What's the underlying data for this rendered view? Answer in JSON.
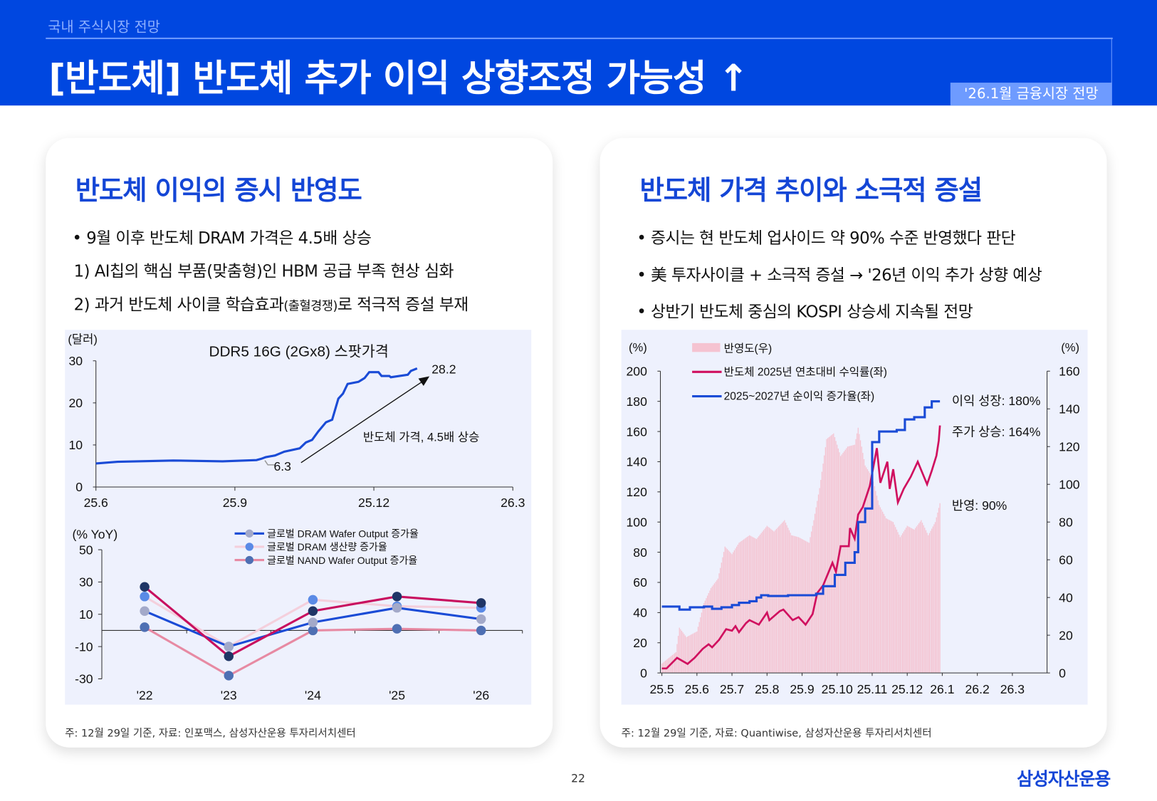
{
  "header": {
    "section": "국내 주식시장 전망",
    "title": "[반도체] 반도체 추가 이익 상향조정 가능성 ↑",
    "badge": "'26.1월 금융시장 전망"
  },
  "left_card": {
    "title": "반도체 이익의 증시 반영도",
    "bullets": [
      "• 9월 이후 반도체 DRAM 가격은 4.5배 상승",
      "1) AI칩의 핵심 부품(맞춤형)인 HBM 공급 부족 현상 심화",
      "2) 과거 반도체 사이클 학습효과",
      "(출혈경쟁)",
      "로 적극적 증설 부재"
    ],
    "footnote": "주: 12월 29일 기준,  자료: 인포맥스, 삼성자산운용 투자리서치센터"
  },
  "right_card": {
    "title": "반도체 가격 추이와 소극적 증설",
    "bullets": [
      "• 증시는 현 반도체 업사이드 약 90% 수준 반영했다 판단",
      "• 美 투자사이클 + 소극적 증설 → '26년 이익 추가 상향 예상",
      "• 상반기 반도체 중심의 KOSPI 상승세 지속될 전망"
    ],
    "footnote": "주: 12월 29일 기준,  자료: Quantiwise, 삼성자산운용 투자리서치센터"
  },
  "footer": {
    "page": "22",
    "logo": "삼성자산운용"
  },
  "colors": {
    "brand": "#0047e0",
    "title_blue": "#1446d6",
    "chart_bg": "#eef1fd",
    "pink_line": "#d0105f",
    "blue_line": "#1a4bd6",
    "bar_pink": "#f5c3d1"
  },
  "chart_data": [
    {
      "type": "line",
      "title": "DDR5 16G (2Gx8) 스팟가격",
      "ylabel": "(달러)",
      "ylim": [
        0,
        30
      ],
      "yticks": [
        "0",
        "10",
        "20",
        "30"
      ],
      "xlim": [
        "2025-06-01",
        "2026-03-01"
      ],
      "xticks": [
        {
          "label": "25.6",
          "date": "2025-06-01"
        },
        {
          "label": "25.9",
          "date": "2025-09-01"
        },
        {
          "label": "25.12",
          "date": "2025-12-01"
        },
        {
          "label": "26.3",
          "date": "2026-03-01"
        }
      ],
      "grid": false,
      "annotations": {
        "start_value": "6.3",
        "end_value": "28.2",
        "arrow_label": "반도체 가격, 4.5배 상승"
      },
      "series": [
        {
          "color": "#1a4bd6",
          "points": [
            [
              "2025-06-01",
              5.6
            ],
            [
              "2025-06-15",
              6.0
            ],
            [
              "2025-07-21",
              6.3
            ],
            [
              "2025-08-23",
              6.1
            ],
            [
              "2025-09-15",
              6.4
            ],
            [
              "2025-09-18",
              6.7
            ],
            [
              "2025-09-21",
              7.1
            ],
            [
              "2025-09-27",
              7.5
            ],
            [
              "2025-10-03",
              8.4
            ],
            [
              "2025-10-13",
              9.2
            ],
            [
              "2025-10-17",
              10.6
            ],
            [
              "2025-10-21",
              11.2
            ],
            [
              "2025-10-25",
              13.2
            ],
            [
              "2025-10-30",
              15.4
            ],
            [
              "2025-11-04",
              16
            ],
            [
              "2025-11-08",
              21
            ],
            [
              "2025-11-11",
              22.2
            ],
            [
              "2025-11-14",
              24.5
            ],
            [
              "2025-11-21",
              25
            ],
            [
              "2025-11-25",
              25.9
            ],
            [
              "2025-11-28",
              27.3
            ],
            [
              "2025-12-04",
              27.3
            ],
            [
              "2025-12-06",
              26.4
            ],
            [
              "2025-12-11",
              26.4
            ],
            [
              "2025-12-12",
              26.1
            ],
            [
              "2025-12-23",
              26.7
            ],
            [
              "2025-12-25",
              27.6
            ],
            [
              "2025-12-29",
              28.2
            ]
          ]
        }
      ]
    },
    {
      "type": "line",
      "ylabel": "(% YoY)",
      "ylim": [
        -30,
        50
      ],
      "yticks": [
        "-30",
        "-10",
        "10",
        "30",
        "50"
      ],
      "categories": [
        "'22",
        "'23",
        "'24",
        "'25",
        "'26"
      ],
      "grid": false,
      "legend": "top-center",
      "series": [
        {
          "name": "글로벌 DRAM Wafer Output 증가율",
          "color": "#1a4bd6",
          "marker": "#a3a9c9",
          "values": [
            12,
            -10,
            5,
            14,
            7
          ]
        },
        {
          "name": "글로벌 DRAM 생산량 증가율",
          "color": "#f4cfdc",
          "marker": "#5a8ae6",
          "values": [
            21,
            -10,
            19,
            15,
            14
          ]
        },
        {
          "name": "글로벌 NAND Wafer Output 증가율",
          "color": "#e78aa3",
          "marker": "#4e6fb3",
          "values": [
            2,
            -28,
            0,
            1,
            0
          ]
        },
        {
          "color": "#c8105f",
          "marker": "#1f3566",
          "values": [
            27,
            -16,
            12,
            21,
            17
          ]
        }
      ]
    },
    {
      "type": "line",
      "left_axis_label": "(%)",
      "right_axis_label": "(%)",
      "ylim_left": [
        0,
        200
      ],
      "ylim_right": [
        0,
        160
      ],
      "yticks_left": [
        "0",
        "20",
        "40",
        "60",
        "80",
        "100",
        "120",
        "140",
        "160",
        "180",
        "200"
      ],
      "yticks_right": [
        "0",
        "20",
        "40",
        "60",
        "80",
        "100",
        "120",
        "140",
        "160"
      ],
      "xticks": [
        "25.5",
        "25.6",
        "25.7",
        "25.8",
        "25.9",
        "25.10",
        "25.11",
        "25.12",
        "26.1",
        "26.2",
        "26.3"
      ],
      "xstart": "2025-05-01",
      "grid": false,
      "legend": "top-left",
      "annotations": [
        "이익 성장: 180%",
        "주가 상승: 164%",
        "반영: 90%"
      ],
      "series": [
        {
          "name": "반영도(우)",
          "kind": "bar",
          "axis": "right",
          "color": "#f5c3d1",
          "points": [
            [
              "2025-05-01",
              5
            ],
            [
              "2025-05-13",
              11
            ],
            [
              "2025-05-16",
              24
            ],
            [
              "2025-05-22",
              19
            ],
            [
              "2025-06-01",
              22
            ],
            [
              "2025-06-07",
              37
            ],
            [
              "2025-06-13",
              45
            ],
            [
              "2025-06-19",
              50
            ],
            [
              "2025-06-25",
              67
            ],
            [
              "2025-07-01",
              63
            ],
            [
              "2025-07-07",
              69
            ],
            [
              "2025-07-16",
              73
            ],
            [
              "2025-07-22",
              71
            ],
            [
              "2025-08-01",
              78
            ],
            [
              "2025-08-07",
              75
            ],
            [
              "2025-08-16",
              81
            ],
            [
              "2025-08-22",
              73
            ],
            [
              "2025-08-28",
              72
            ],
            [
              "2025-09-07",
              69
            ],
            [
              "2025-09-11",
              81
            ],
            [
              "2025-09-16",
              98
            ],
            [
              "2025-09-22",
              124
            ],
            [
              "2025-09-28",
              127
            ],
            [
              "2025-10-04",
              115
            ],
            [
              "2025-10-10",
              120
            ],
            [
              "2025-10-16",
              121
            ],
            [
              "2025-10-19",
              130
            ],
            [
              "2025-10-25",
              110
            ],
            [
              "2025-11-01",
              104
            ],
            [
              "2025-11-07",
              89
            ],
            [
              "2025-11-13",
              82
            ],
            [
              "2025-11-19",
              80
            ],
            [
              "2025-11-25",
              72
            ],
            [
              "2025-12-01",
              78
            ],
            [
              "2025-12-07",
              76
            ],
            [
              "2025-12-13",
              81
            ],
            [
              "2025-12-19",
              73
            ],
            [
              "2025-12-25",
              80
            ],
            [
              "2025-12-29",
              90
            ]
          ]
        },
        {
          "name": "반도체 2025년 연초대비 수익률(좌)",
          "kind": "line",
          "axis": "left",
          "color": "#d0105f",
          "points": [
            [
              "2025-05-01",
              3
            ],
            [
              "2025-05-05",
              3
            ],
            [
              "2025-05-14",
              10
            ],
            [
              "2025-05-23",
              6
            ],
            [
              "2025-05-29",
              10
            ],
            [
              "2025-06-06",
              16
            ],
            [
              "2025-06-11",
              19
            ],
            [
              "2025-06-14",
              17
            ],
            [
              "2025-06-20",
              22
            ],
            [
              "2025-06-26",
              29
            ],
            [
              "2025-07-01",
              28
            ],
            [
              "2025-07-04",
              31
            ],
            [
              "2025-07-07",
              27
            ],
            [
              "2025-07-13",
              33
            ],
            [
              "2025-07-16",
              35
            ],
            [
              "2025-07-24",
              32
            ],
            [
              "2025-08-01",
              40
            ],
            [
              "2025-08-03",
              35
            ],
            [
              "2025-08-12",
              41
            ],
            [
              "2025-08-15",
              42
            ],
            [
              "2025-08-23",
              35
            ],
            [
              "2025-08-28",
              37
            ],
            [
              "2025-09-04",
              32
            ],
            [
              "2025-09-10",
              39
            ],
            [
              "2025-09-14",
              53
            ],
            [
              "2025-09-19",
              58
            ],
            [
              "2025-09-27",
              73
            ],
            [
              "2025-09-30",
              67
            ],
            [
              "2025-10-04",
              84
            ],
            [
              "2025-10-11",
              84
            ],
            [
              "2025-10-12",
              96
            ],
            [
              "2025-10-16",
              89
            ],
            [
              "2025-10-19",
              105
            ],
            [
              "2025-10-23",
              110
            ],
            [
              "2025-10-29",
              124
            ],
            [
              "2025-11-05",
              149
            ],
            [
              "2025-11-08",
              126
            ],
            [
              "2025-11-14",
              140
            ],
            [
              "2025-11-16",
              122
            ],
            [
              "2025-11-19",
              135
            ],
            [
              "2025-11-23",
              113
            ],
            [
              "2025-11-28",
              122
            ],
            [
              "2025-12-04",
              130
            ],
            [
              "2025-12-10",
              140
            ],
            [
              "2025-12-18",
              125
            ],
            [
              "2025-12-22",
              134
            ],
            [
              "2025-12-26",
              144
            ],
            [
              "2025-12-28",
              154
            ],
            [
              "2025-12-29",
              164
            ]
          ]
        },
        {
          "name": "2025~2027년 순이익 증가율(좌)",
          "kind": "step",
          "axis": "left",
          "color": "#1a4bd6",
          "points": [
            [
              "2025-05-01",
              44
            ],
            [
              "2025-05-16",
              42
            ],
            [
              "2025-05-25",
              43.5
            ],
            [
              "2025-06-07",
              44
            ],
            [
              "2025-06-14",
              42.5
            ],
            [
              "2025-06-22",
              43.5
            ],
            [
              "2025-07-01",
              45
            ],
            [
              "2025-07-07",
              46.5
            ],
            [
              "2025-07-16",
              47.5
            ],
            [
              "2025-07-22",
              50
            ],
            [
              "2025-07-26",
              51.5
            ],
            [
              "2025-08-02",
              51
            ],
            [
              "2025-08-19",
              51.5
            ],
            [
              "2025-09-13",
              52.5
            ],
            [
              "2025-09-19",
              57.5
            ],
            [
              "2025-09-29",
              65
            ],
            [
              "2025-10-08",
              73
            ],
            [
              "2025-10-16",
              80
            ],
            [
              "2025-10-19",
              100
            ],
            [
              "2025-10-25",
              109
            ],
            [
              "2025-11-01",
              153
            ],
            [
              "2025-11-07",
              160
            ],
            [
              "2025-11-22",
              161
            ],
            [
              "2025-11-29",
              168
            ],
            [
              "2025-12-07",
              169.5
            ],
            [
              "2025-12-16",
              176
            ],
            [
              "2025-12-22",
              180
            ],
            [
              "2025-12-29",
              180
            ]
          ]
        }
      ]
    }
  ]
}
